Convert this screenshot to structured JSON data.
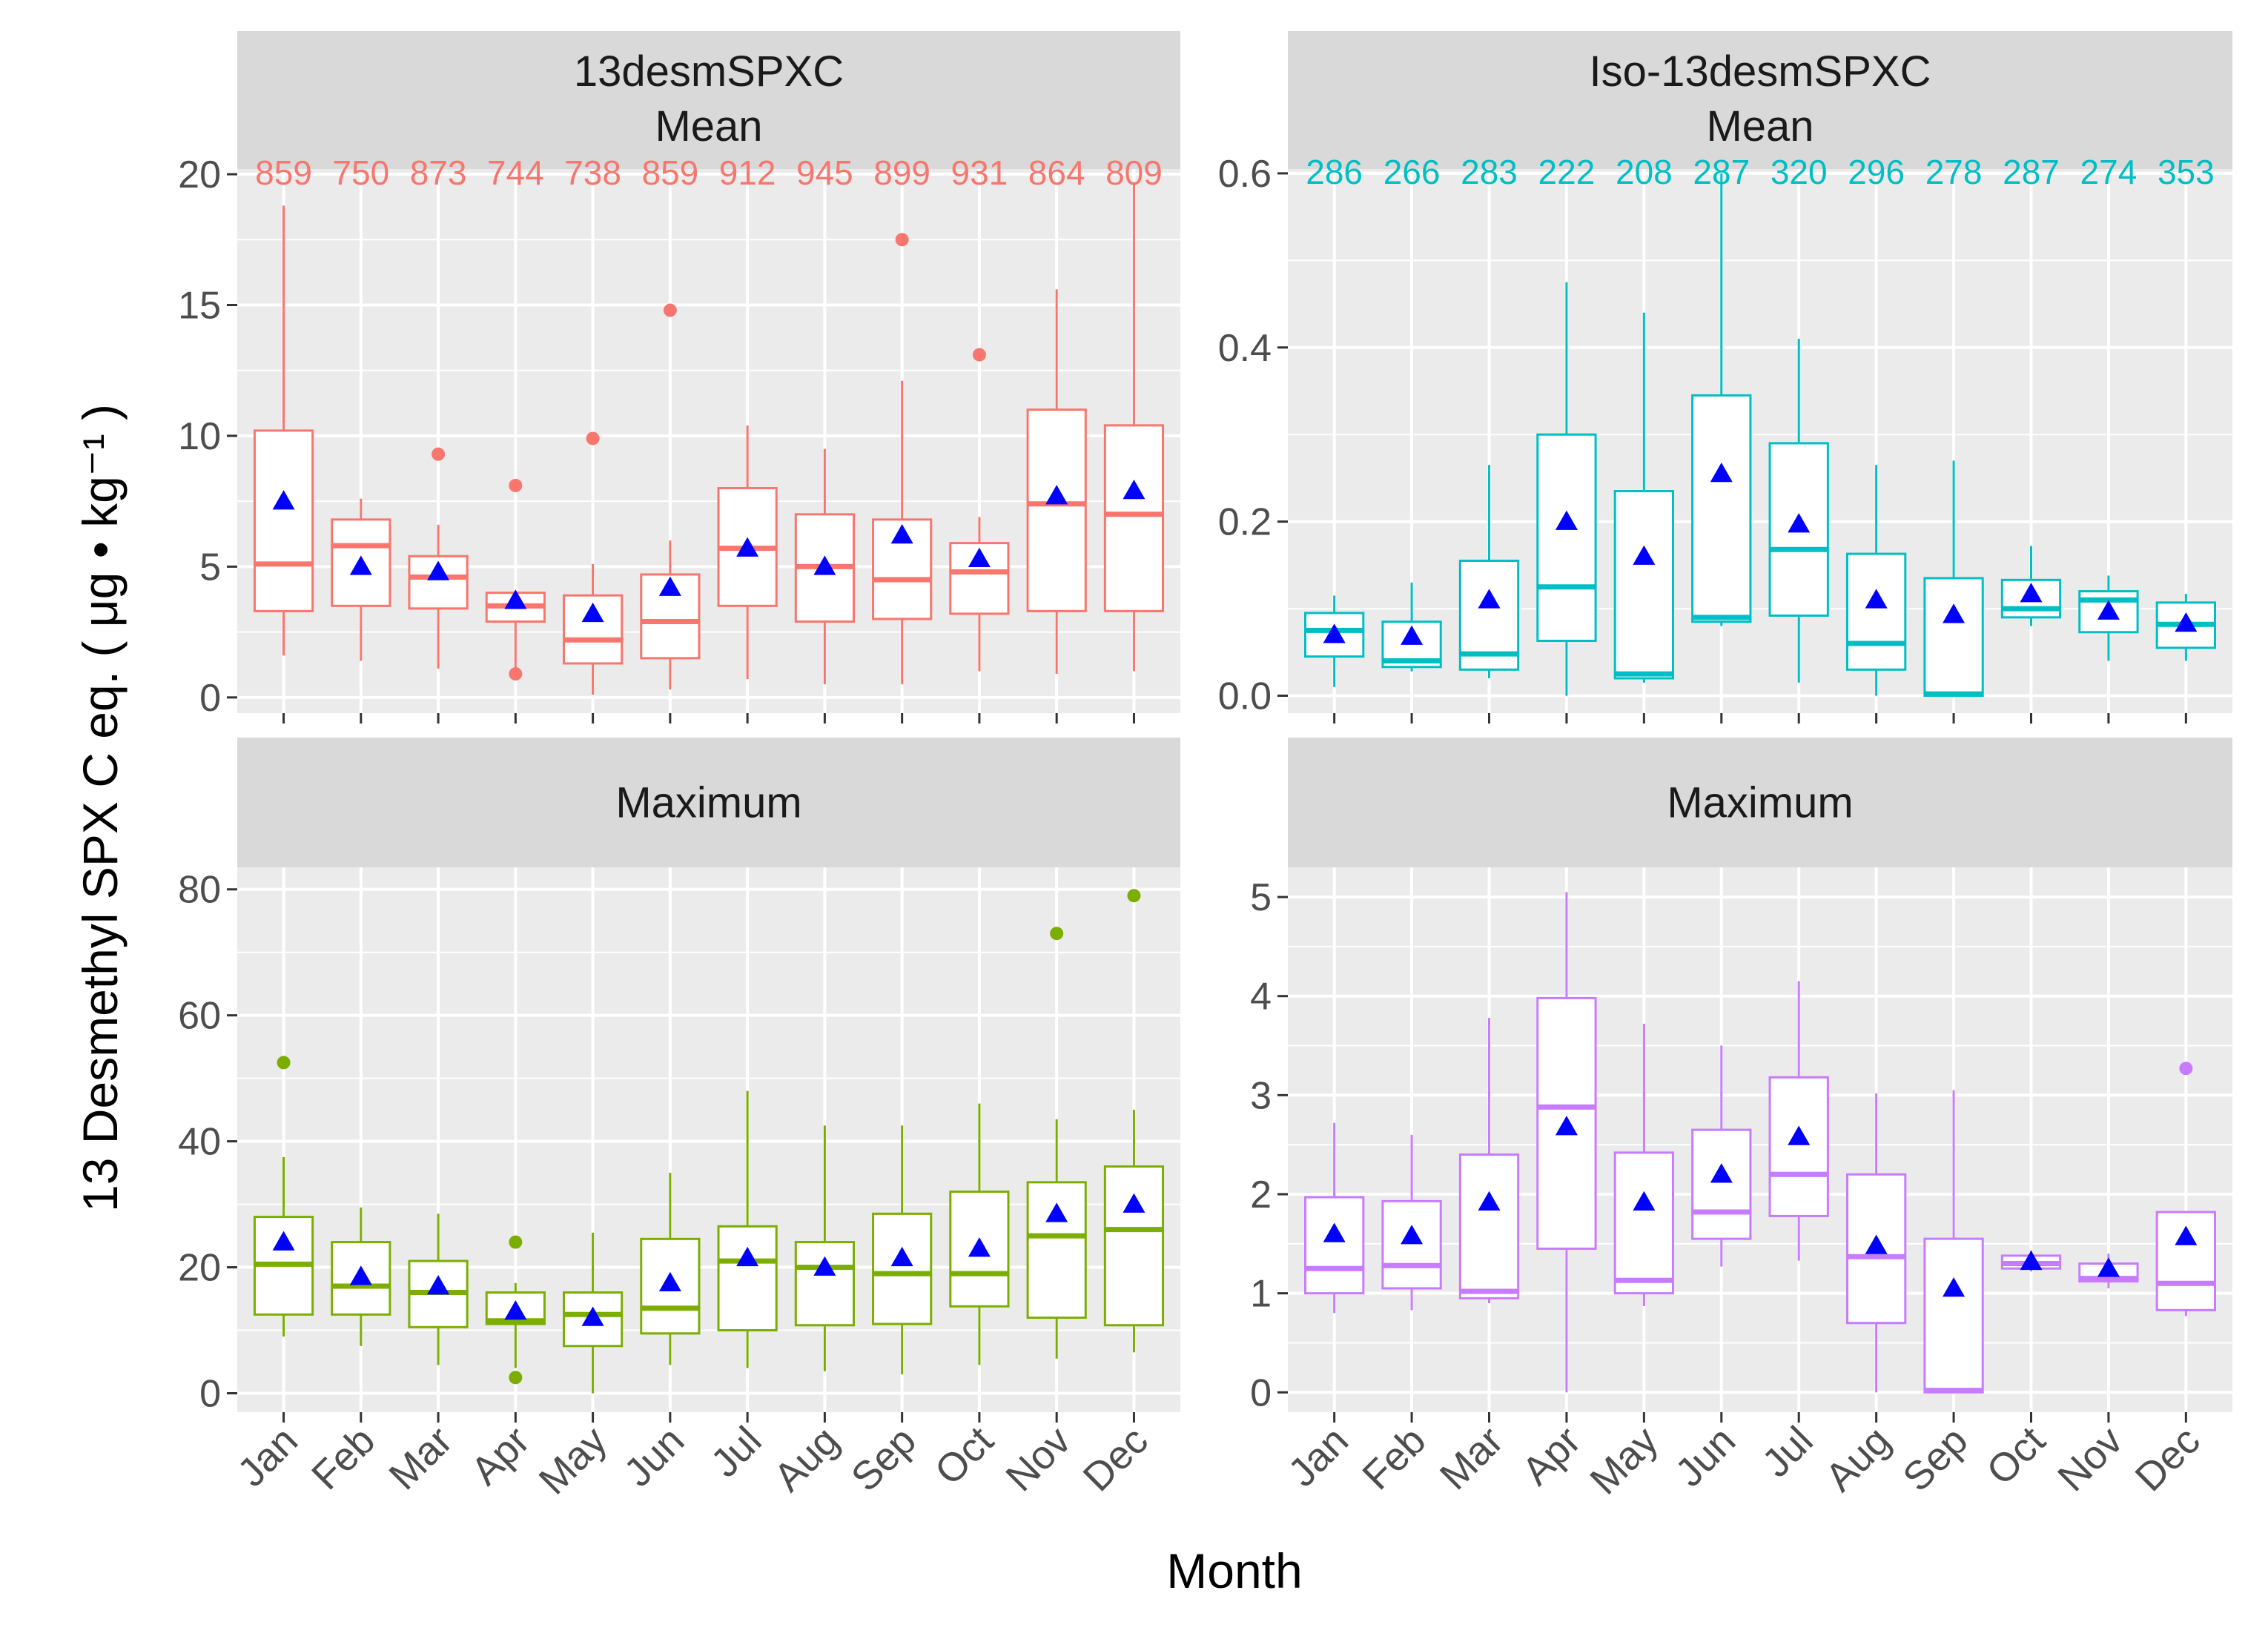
{
  "figure": {
    "ylabel": "13 Desmethyl SPX C eq. ( μg • kg⁻¹ )",
    "xlabel": "Month"
  },
  "chart_data": [
    {
      "type": "box",
      "strip_lines": [
        "13desmSPXC",
        "Mean"
      ],
      "color": "#F8766D",
      "ylim": [
        -0.6,
        20.2
      ],
      "yticks": [
        0,
        5,
        10,
        15,
        20
      ],
      "ytick_labels": [
        "0",
        "5",
        "10",
        "15",
        "20"
      ],
      "categories": [
        "Jan",
        "Feb",
        "Mar",
        "Apr",
        "May",
        "Jun",
        "Jul",
        "Aug",
        "Sep",
        "Oct",
        "Nov",
        "Dec"
      ],
      "counts": [
        "859",
        "750",
        "873",
        "744",
        "738",
        "859",
        "912",
        "945",
        "899",
        "931",
        "864",
        "809"
      ],
      "q1": [
        3.3,
        3.5,
        3.4,
        2.9,
        1.3,
        1.5,
        3.5,
        2.9,
        3.0,
        3.2,
        3.3,
        3.3
      ],
      "median": [
        5.1,
        5.8,
        4.6,
        3.5,
        2.2,
        2.9,
        5.7,
        5.0,
        4.5,
        4.8,
        7.4,
        7.0
      ],
      "q3": [
        10.2,
        6.8,
        5.4,
        4.0,
        3.9,
        4.7,
        8.0,
        7.0,
        6.8,
        5.9,
        11.0,
        10.4
      ],
      "whisker_low": [
        1.6,
        1.4,
        1.1,
        0.9,
        0.1,
        0.3,
        0.7,
        0.5,
        0.5,
        1.0,
        0.9,
        1.0
      ],
      "whisker_high": [
        18.8,
        7.6,
        6.6,
        4.0,
        5.1,
        6.0,
        10.4,
        9.5,
        12.1,
        6.9,
        15.6,
        19.7
      ],
      "mean": [
        7.5,
        5.0,
        4.8,
        3.7,
        3.2,
        4.2,
        5.7,
        5.0,
        6.2,
        5.3,
        7.7,
        7.9
      ],
      "outliers": [
        [],
        [],
        [
          9.3
        ],
        [
          8.1,
          0.9
        ],
        [
          9.9
        ],
        [
          14.8
        ],
        [],
        [],
        [
          17.5
        ],
        [
          13.1
        ],
        [],
        []
      ]
    },
    {
      "type": "box",
      "strip_lines": [
        "Iso-13desmSPXC",
        "Mean"
      ],
      "color": "#00BFC4",
      "ylim": [
        -0.02,
        0.605
      ],
      "yticks": [
        0,
        0.2,
        0.4,
        0.6
      ],
      "ytick_labels": [
        "0.0",
        "0.2",
        "0.4",
        "0.6"
      ],
      "categories": [
        "Jan",
        "Feb",
        "Mar",
        "Apr",
        "May",
        "Jun",
        "Jul",
        "Aug",
        "Sep",
        "Oct",
        "Nov",
        "Dec"
      ],
      "counts": [
        "286",
        "266",
        "283",
        "222",
        "208",
        "287",
        "320",
        "296",
        "278",
        "287",
        "274",
        "353"
      ],
      "q1": [
        0.045,
        0.033,
        0.03,
        0.063,
        0.02,
        0.085,
        0.092,
        0.03,
        0.0,
        0.09,
        0.073,
        0.055
      ],
      "median": [
        0.075,
        0.04,
        0.048,
        0.125,
        0.025,
        0.09,
        0.168,
        0.06,
        0.002,
        0.1,
        0.11,
        0.082
      ],
      "q3": [
        0.095,
        0.085,
        0.155,
        0.3,
        0.235,
        0.345,
        0.29,
        0.163,
        0.135,
        0.133,
        0.12,
        0.107
      ],
      "whisker_low": [
        0.01,
        0.028,
        0.02,
        0.0,
        0.015,
        0.08,
        0.015,
        0.0,
        0.0,
        0.08,
        0.04,
        0.04
      ],
      "whisker_high": [
        0.115,
        0.13,
        0.265,
        0.475,
        0.44,
        0.6,
        0.41,
        0.265,
        0.27,
        0.172,
        0.138,
        0.117
      ],
      "mean": [
        0.07,
        0.068,
        0.11,
        0.2,
        0.16,
        0.255,
        0.197,
        0.11,
        0.093,
        0.117,
        0.097,
        0.083
      ],
      "outliers": [
        [],
        [],
        [],
        [],
        [],
        [],
        [],
        [],
        [],
        [],
        [],
        []
      ]
    },
    {
      "type": "box",
      "strip_lines": [
        "Maximum"
      ],
      "color": "#7CAE00",
      "ylim": [
        -3,
        83.5
      ],
      "yticks": [
        0,
        20,
        40,
        60,
        80
      ],
      "ytick_labels": [
        "0",
        "20",
        "40",
        "60",
        "80"
      ],
      "categories": [
        "Jan",
        "Feb",
        "Mar",
        "Apr",
        "May",
        "Jun",
        "Jul",
        "Aug",
        "Sep",
        "Oct",
        "Nov",
        "Dec"
      ],
      "xtick_labels": [
        "Jan",
        "Feb",
        "Mar",
        "Apr",
        "May",
        "Jun",
        "Jul",
        "Aug",
        "Sep",
        "Oct",
        "Nov",
        "Dec"
      ],
      "q1": [
        12.5,
        12.5,
        10.5,
        11.0,
        7.5,
        9.5,
        10.0,
        10.8,
        11.0,
        13.8,
        12.0,
        10.8
      ],
      "median": [
        20.5,
        17.0,
        16.0,
        11.5,
        12.5,
        13.5,
        21.0,
        20.0,
        19.0,
        19.0,
        25.0,
        26.0
      ],
      "q3": [
        28.0,
        24.0,
        21.0,
        16.0,
        16.0,
        24.5,
        26.5,
        24.0,
        28.5,
        32.0,
        33.5,
        36.0
      ],
      "whisker_low": [
        9.0,
        7.5,
        4.5,
        4.0,
        0.0,
        4.5,
        4.0,
        3.5,
        3.0,
        4.5,
        5.5,
        6.5
      ],
      "whisker_high": [
        37.5,
        29.5,
        28.5,
        17.5,
        25.5,
        35.0,
        48.0,
        42.5,
        42.5,
        46.0,
        43.5,
        45.0
      ],
      "mean": [
        24.0,
        18.5,
        17.0,
        13.0,
        12.0,
        17.5,
        21.5,
        20.0,
        21.5,
        23.0,
        28.5,
        30.0
      ],
      "outliers": [
        [
          52.5
        ],
        [],
        [],
        [
          24.0,
          2.5
        ],
        [],
        [],
        [],
        [],
        [],
        [],
        [
          73.0
        ],
        [
          79.0
        ]
      ]
    },
    {
      "type": "box",
      "strip_lines": [
        "Maximum"
      ],
      "color": "#C77CFF",
      "ylim": [
        -0.2,
        5.3
      ],
      "yticks": [
        0,
        1,
        2,
        3,
        4,
        5
      ],
      "ytick_labels": [
        "0",
        "1",
        "2",
        "3",
        "4",
        "5"
      ],
      "categories": [
        "Jan",
        "Feb",
        "Mar",
        "Apr",
        "May",
        "Jun",
        "Jul",
        "Aug",
        "Sep",
        "Oct",
        "Nov",
        "Dec"
      ],
      "xtick_labels": [
        "Jan",
        "Feb",
        "Mar",
        "Apr",
        "May",
        "Jun",
        "Jul",
        "Aug",
        "Sep",
        "Oct",
        "Nov",
        "Dec"
      ],
      "q1": [
        1.0,
        1.05,
        0.95,
        1.45,
        1.0,
        1.55,
        1.78,
        0.7,
        0.0,
        1.25,
        1.12,
        0.83
      ],
      "median": [
        1.25,
        1.28,
        1.02,
        2.88,
        1.13,
        1.82,
        2.2,
        1.37,
        0.02,
        1.3,
        1.15,
        1.1
      ],
      "q3": [
        1.97,
        1.93,
        2.4,
        3.98,
        2.42,
        2.65,
        3.18,
        2.2,
        1.55,
        1.38,
        1.3,
        1.82
      ],
      "whisker_low": [
        0.8,
        0.83,
        0.9,
        0.0,
        0.87,
        1.27,
        1.33,
        0.0,
        0.0,
        1.22,
        1.05,
        0.77
      ],
      "whisker_high": [
        2.72,
        2.6,
        3.78,
        5.05,
        3.72,
        3.5,
        4.15,
        3.02,
        3.05,
        1.43,
        1.4,
        1.82
      ],
      "mean": [
        1.6,
        1.58,
        1.92,
        2.68,
        1.92,
        2.2,
        2.58,
        1.48,
        1.05,
        1.32,
        1.25,
        1.57
      ],
      "outliers": [
        [],
        [],
        [],
        [],
        [],
        [],
        [],
        [],
        [],
        [],
        [],
        [
          3.27
        ]
      ]
    }
  ]
}
